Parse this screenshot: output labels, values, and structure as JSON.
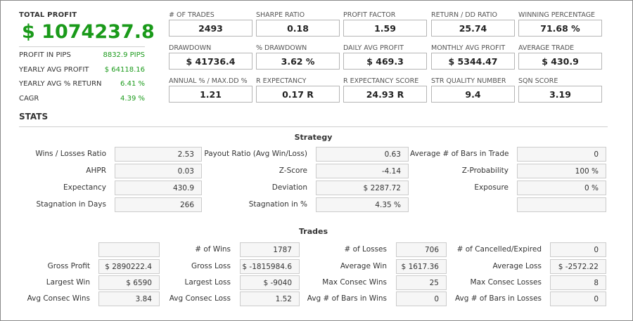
{
  "summary": {
    "total_profit_label": "TOTAL PROFIT",
    "total_profit_value": "$ 1074237.8",
    "items": [
      {
        "label": "PROFIT IN PIPS",
        "value": "8832.9 PIPS"
      },
      {
        "label": "YEARLY AVG PROFIT",
        "value": "$ 64118.16"
      },
      {
        "label": "YEARLY AVG % RETURN",
        "value": "6.41 %"
      },
      {
        "label": "CAGR",
        "value": "4.39 %"
      }
    ],
    "accent_color": "#1a9a1a"
  },
  "metrics": [
    {
      "label": "# OF TRADES",
      "value": "2493"
    },
    {
      "label": "SHARPE RATIO",
      "value": "0.18"
    },
    {
      "label": "PROFIT FACTOR",
      "value": "1.59"
    },
    {
      "label": "RETURN / DD RATIO",
      "value": "25.74"
    },
    {
      "label": "WINNING PERCENTAGE",
      "value": "71.68 %"
    },
    {
      "label": "DRAWDOWN",
      "value": "$ 41736.4"
    },
    {
      "label": "% DRAWDOWN",
      "value": "3.62 %"
    },
    {
      "label": "DAILY AVG PROFIT",
      "value": "$ 469.3"
    },
    {
      "label": "MONTHLY AVG PROFIT",
      "value": "$ 5344.47"
    },
    {
      "label": "AVERAGE TRADE",
      "value": "$ 430.9"
    },
    {
      "label": "ANNUAL % / MAX.DD %",
      "value": "1.21"
    },
    {
      "label": "R EXPECTANCY",
      "value": "0.17 R"
    },
    {
      "label": "R EXPECTANCY SCORE",
      "value": "24.93 R"
    },
    {
      "label": "STR QUALITY NUMBER",
      "value": "9.4"
    },
    {
      "label": "SQN SCORE",
      "value": "3.19"
    }
  ],
  "stats_title": "STATS",
  "strategy": {
    "title": "Strategy",
    "rows": [
      [
        {
          "label": "Wins / Losses Ratio",
          "value": "2.53"
        },
        {
          "label": "Payout Ratio (Avg Win/Loss)",
          "value": "0.63"
        },
        {
          "label": "Average # of Bars in Trade",
          "value": "0"
        }
      ],
      [
        {
          "label": "AHPR",
          "value": "0.03"
        },
        {
          "label": "Z-Score",
          "value": "-4.14"
        },
        {
          "label": "Z-Probability",
          "value": "100 %"
        }
      ],
      [
        {
          "label": "Expectancy",
          "value": "430.9"
        },
        {
          "label": "Deviation",
          "value": "$ 2287.72"
        },
        {
          "label": "Exposure",
          "value": "0 %"
        }
      ],
      [
        {
          "label": "Stagnation in Days",
          "value": "266"
        },
        {
          "label": "Stagnation in %",
          "value": "4.35 %"
        },
        {
          "label": "",
          "value": ""
        }
      ]
    ]
  },
  "trades": {
    "title": "Trades",
    "rows": [
      [
        {
          "label": "",
          "value": ""
        },
        {
          "label": "# of Wins",
          "value": "1787"
        },
        {
          "label": "# of Losses",
          "value": "706"
        },
        {
          "label": "# of Cancelled/Expired",
          "value": "0"
        }
      ],
      [
        {
          "label": "Gross Profit",
          "value": "$ 2890222.4"
        },
        {
          "label": "Gross Loss",
          "value": "$ -1815984.6"
        },
        {
          "label": "Average Win",
          "value": "$ 1617.36"
        },
        {
          "label": "Average Loss",
          "value": "$ -2572.22"
        }
      ],
      [
        {
          "label": "Largest Win",
          "value": "$ 6590"
        },
        {
          "label": "Largest Loss",
          "value": "$ -9040"
        },
        {
          "label": "Max Consec Wins",
          "value": "25"
        },
        {
          "label": "Max Consec Losses",
          "value": "8"
        }
      ],
      [
        {
          "label": "Avg Consec Wins",
          "value": "3.84"
        },
        {
          "label": "Avg Consec Loss",
          "value": "1.52"
        },
        {
          "label": "Avg # of Bars in Wins",
          "value": "0"
        },
        {
          "label": "Avg # of Bars in Losses",
          "value": "0"
        }
      ]
    ]
  }
}
